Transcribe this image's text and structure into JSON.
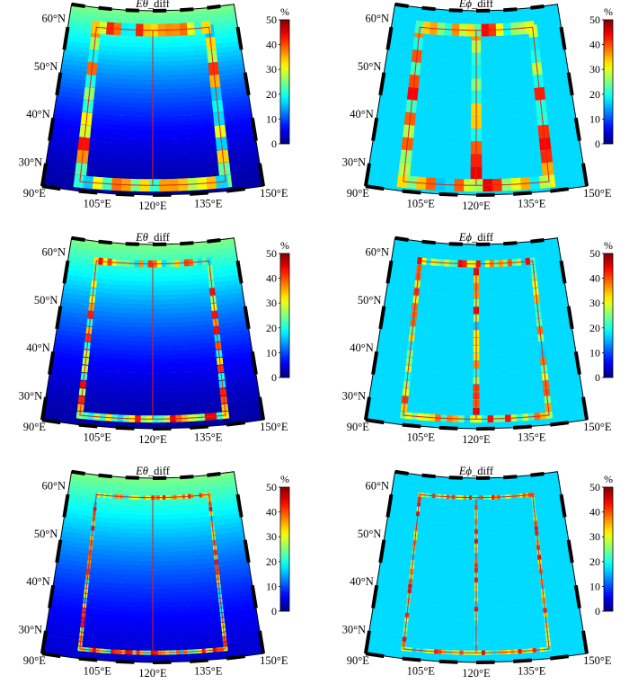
{
  "colorbar": {
    "unit": "%",
    "ticks": [
      "0",
      "10",
      "20",
      "30",
      "40",
      "50"
    ],
    "range": [
      0,
      50
    ],
    "colormap": "jet",
    "colors": [
      "#00008f",
      "#0000ff",
      "#00ffff",
      "#ffff00",
      "#ff0000",
      "#800000"
    ]
  },
  "axes": {
    "lat_labels": [
      "30°N",
      "40°N",
      "50°N",
      "60°N"
    ],
    "lon_labels": [
      "90°E",
      "105°E",
      "120°E",
      "135°E",
      "150°E"
    ],
    "lon_range_deg": [
      90,
      150
    ],
    "lat_range_deg": [
      25,
      63
    ]
  },
  "region_box": {
    "color": "#e0201a",
    "lon_range_deg": [
      100,
      140
    ],
    "lat_range_deg": [
      27,
      59
    ],
    "center_meridian_deg": 120
  },
  "chart_data": [
    {
      "type": "heatmap",
      "panel": 1,
      "title": "Eθ_diff",
      "title_symbol": "Eθ",
      "title_suffix": "_diff",
      "component": "theta",
      "unit": "%",
      "value_range": [
        0,
        50
      ],
      "background_north_pct": 25,
      "background_south_pct": 2,
      "boundary_error_pct": 45,
      "resolution": "coarse"
    },
    {
      "type": "heatmap",
      "panel": 2,
      "title": "Eϕ_diff",
      "title_symbol": "Eϕ",
      "title_suffix": "_diff",
      "component": "phi",
      "unit": "%",
      "value_range": [
        0,
        50
      ],
      "background_pct": 17,
      "boundary_error_pct": 45,
      "resolution": "coarse"
    },
    {
      "type": "heatmap",
      "panel": 3,
      "title": "Eθ_diff",
      "title_symbol": "Eθ",
      "title_suffix": "_diff",
      "component": "theta",
      "unit": "%",
      "value_range": [
        0,
        50
      ],
      "background_north_pct": 25,
      "background_south_pct": 2,
      "boundary_error_pct": 45,
      "resolution": "medium"
    },
    {
      "type": "heatmap",
      "panel": 4,
      "title": "Eϕ_diff",
      "title_symbol": "Eϕ",
      "title_suffix": "_diff",
      "component": "phi",
      "unit": "%",
      "value_range": [
        0,
        50
      ],
      "background_pct": 17,
      "boundary_error_pct": 45,
      "resolution": "medium"
    },
    {
      "type": "heatmap",
      "panel": 5,
      "title": "Eθ_diff",
      "title_symbol": "Eθ",
      "title_suffix": "_diff",
      "component": "theta",
      "unit": "%",
      "value_range": [
        0,
        50
      ],
      "background_north_pct": 25,
      "background_south_pct": 4,
      "boundary_error_pct": 45,
      "resolution": "fine"
    },
    {
      "type": "heatmap",
      "panel": 6,
      "title": "Eϕ_diff",
      "title_symbol": "Eϕ",
      "title_suffix": "_diff",
      "component": "phi",
      "unit": "%",
      "value_range": [
        0,
        50
      ],
      "background_pct": 17,
      "boundary_error_pct": 45,
      "resolution": "fine"
    }
  ]
}
